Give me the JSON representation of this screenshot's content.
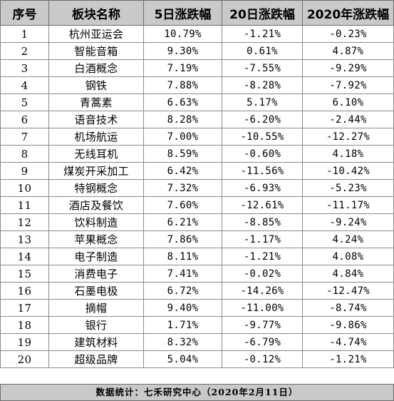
{
  "headers": [
    "序号",
    "板块名称",
    "5日涨跌幅",
    "20日涨跌幅",
    "2020年涨跌幅"
  ],
  "rows": [
    {
      "no": "1",
      "name": "杭州亚运会",
      "d5": "10.79%",
      "d20": "-1.21%",
      "ytd": "-0.23%"
    },
    {
      "no": "2",
      "name": "智能音箱",
      "d5": "9.30%",
      "d20": "0.61%",
      "ytd": "4.87%"
    },
    {
      "no": "3",
      "name": "白酒概念",
      "d5": "7.19%",
      "d20": "-7.55%",
      "ytd": "-9.29%"
    },
    {
      "no": "4",
      "name": "钢铁",
      "d5": "7.88%",
      "d20": "-8.28%",
      "ytd": "-7.92%"
    },
    {
      "no": "5",
      "name": "青蒿素",
      "d5": "6.63%",
      "d20": "5.17%",
      "ytd": "6.10%"
    },
    {
      "no": "6",
      "name": "语音技术",
      "d5": "8.28%",
      "d20": "-6.20%",
      "ytd": "-2.44%"
    },
    {
      "no": "7",
      "name": "机场航运",
      "d5": "7.00%",
      "d20": "-10.55%",
      "ytd": "-12.27%"
    },
    {
      "no": "8",
      "name": "无线耳机",
      "d5": "8.59%",
      "d20": "-0.60%",
      "ytd": "4.18%"
    },
    {
      "no": "9",
      "name": "煤炭开采加工",
      "d5": "6.42%",
      "d20": "-11.56%",
      "ytd": "-10.42%"
    },
    {
      "no": "10",
      "name": "特钢概念",
      "d5": "7.32%",
      "d20": "-6.93%",
      "ytd": "-5.23%"
    },
    {
      "no": "11",
      "name": "酒店及餐饮",
      "d5": "7.60%",
      "d20": "-12.61%",
      "ytd": "-11.17%"
    },
    {
      "no": "12",
      "name": "饮料制造",
      "d5": "6.21%",
      "d20": "-8.85%",
      "ytd": "-9.24%"
    },
    {
      "no": "13",
      "name": "苹果概念",
      "d5": "7.86%",
      "d20": "-1.17%",
      "ytd": "4.24%"
    },
    {
      "no": "14",
      "name": "电子制造",
      "d5": "8.11%",
      "d20": "-1.21%",
      "ytd": "4.08%"
    },
    {
      "no": "15",
      "name": "消费电子",
      "d5": "7.41%",
      "d20": "-0.02%",
      "ytd": "4.84%"
    },
    {
      "no": "16",
      "name": "石墨电极",
      "d5": "6.72%",
      "d20": "-14.26%",
      "ytd": "-12.47%"
    },
    {
      "no": "17",
      "name": "摘帽",
      "d5": "9.40%",
      "d20": "-11.00%",
      "ytd": "-8.74%"
    },
    {
      "no": "18",
      "name": "银行",
      "d5": "1.71%",
      "d20": "-9.77%",
      "ytd": "-9.86%"
    },
    {
      "no": "19",
      "name": "建筑材料",
      "d5": "8.32%",
      "d20": "-6.79%",
      "ytd": "-4.74%"
    },
    {
      "no": "20",
      "name": "超级品牌",
      "d5": "5.04%",
      "d20": "-0.12%",
      "ytd": "-1.21%"
    }
  ],
  "footer": "数据统计：七禾研究中心（2020年2月11日）",
  "colors": {
    "header_bg": "#c9c9c9",
    "footer_bg": "#c9c9c9",
    "grid_line": "#8a8a8a"
  }
}
